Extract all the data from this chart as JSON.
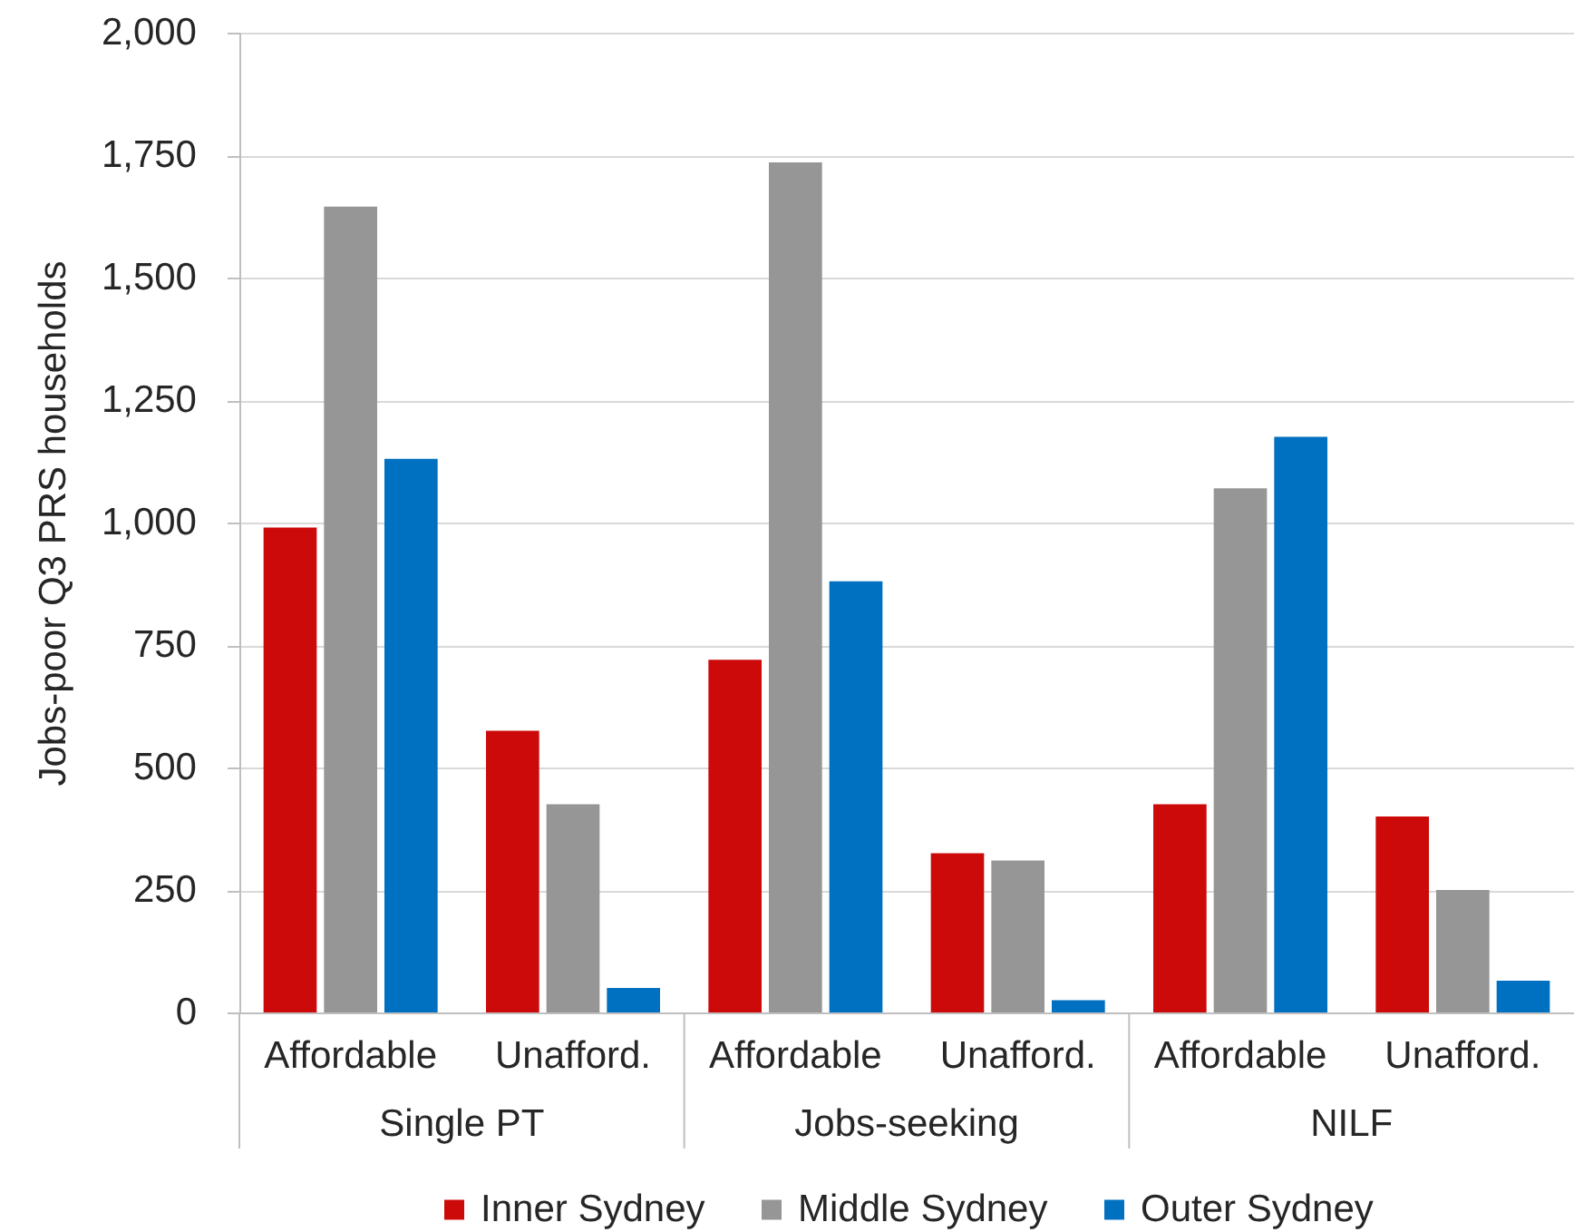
{
  "chart_data": {
    "type": "bar",
    "ylabel": "Jobs-poor Q3 PRS households",
    "categories": [
      "Affordable",
      "Unafford.",
      "Affordable",
      "Unafford.",
      "Affordable",
      "Unafford."
    ],
    "annotations": [
      "Single PT",
      "Jobs-seeking",
      "NILF"
    ],
    "series": [
      {
        "name": "Inner Sydney",
        "color": "#cc0a0a",
        "values": [
          990,
          575,
          720,
          325,
          425,
          400
        ]
      },
      {
        "name": "Middle Sydney",
        "color": "#969696",
        "values": [
          1645,
          425,
          1735,
          310,
          1070,
          250
        ]
      },
      {
        "name": "Outer Sydney",
        "color": "#0070c0",
        "values": [
          1130,
          50,
          880,
          25,
          1175,
          65
        ]
      }
    ],
    "ylim": [
      0,
      2000
    ],
    "yticks": [
      0,
      250,
      500,
      750,
      {
        "value": 1000,
        "label": "1,000"
      },
      {
        "value": 1250,
        "label": "1,250"
      },
      {
        "value": 1500,
        "label": "1,500"
      },
      {
        "value": 1750,
        "label": "1,750"
      },
      {
        "value": 2000,
        "label": "2,000"
      }
    ],
    "grid": "y",
    "legend": "bottom"
  }
}
